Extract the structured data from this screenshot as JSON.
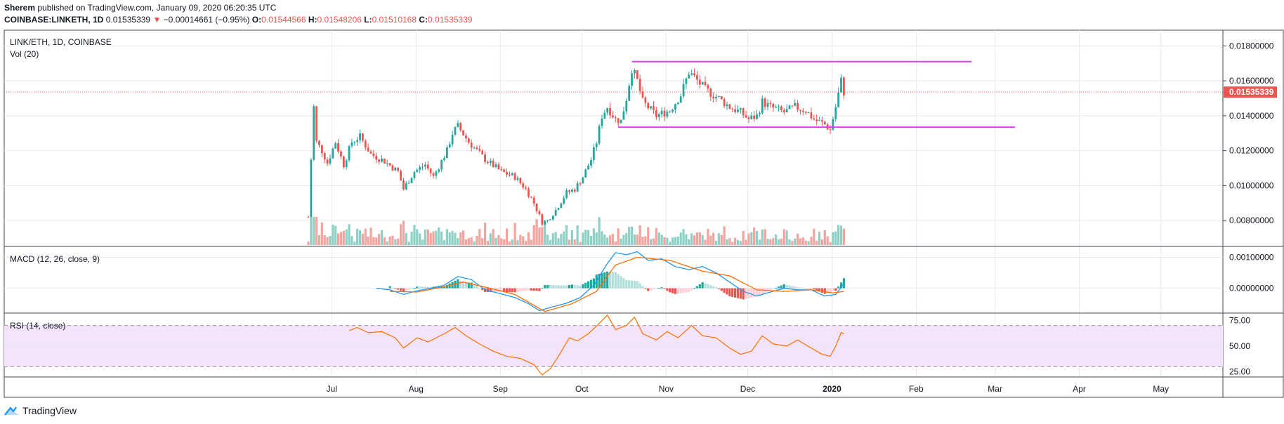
{
  "header": {
    "author": "Sherem",
    "published_text": "published on TradingView.com, January 09, 2020 06:20:35 UTC"
  },
  "ohlc": {
    "symbol": "COINBASE:LINKETH, 1D",
    "last": "0.01535339",
    "arrow": "▼",
    "change": "−0.00014661 (−0.95%)",
    "o_label": "O:",
    "o": "0.01544566",
    "h_label": "H:",
    "h": "0.01548206",
    "l_label": "L:",
    "l": "0.01510168",
    "c_label": "C:",
    "c": "0.01535339"
  },
  "footer": {
    "brand": "TradingView",
    "logo_icon": "tradingview-logo-icon"
  },
  "colors": {
    "up": "#26a69a",
    "down": "#ef5350",
    "up_vol": "#8fd0c6",
    "down_vol": "#f4a39e",
    "level_line": "#e040fb",
    "macd": "#2196f3",
    "signal": "#ff6d00",
    "rsi": "#ff6d00",
    "rsi_band": "#f3e4fb"
  },
  "chart_data": [
    {
      "type": "candlestick",
      "title": "LINK/ETH, 1D, COINBASE",
      "volume_label": "Vol (20)",
      "y_ticks": [
        "0.01800000",
        "0.01600000",
        "0.01400000",
        "0.01200000",
        "0.01000000",
        "0.00800000"
      ],
      "y_tick_values": [
        0.018,
        0.016,
        0.014,
        0.012,
        0.01,
        0.008
      ],
      "ylim": [
        0.0066,
        0.0189
      ],
      "x_ticks": [
        "Jul",
        "Aug",
        "Sep",
        "Oct",
        "Nov",
        "Dec",
        "2020",
        "Feb",
        "Mar",
        "Apr",
        "May"
      ],
      "x_start": "2019-06-26",
      "x_end": "2020-01-09",
      "last_price_label": "0.01535339",
      "last_price": 0.01535339,
      "levels": [
        {
          "price": 0.0171,
          "from": "2019-10-23",
          "to": "2020-02-25"
        },
        {
          "price": 0.01335,
          "from": "2019-10-18",
          "to": "2020-03-12"
        }
      ],
      "close_path": [
        [
          "2019-06-26",
          0.0082
        ],
        [
          "2019-06-27",
          0.0115
        ],
        [
          "2019-06-28",
          0.0145
        ],
        [
          "2019-06-29",
          0.0125
        ],
        [
          "2019-07-01",
          0.012
        ],
        [
          "2019-07-03",
          0.0113
        ],
        [
          "2019-07-06",
          0.0125
        ],
        [
          "2019-07-09",
          0.0112
        ],
        [
          "2019-07-12",
          0.0125
        ],
        [
          "2019-07-15",
          0.0128
        ],
        [
          "2019-07-19",
          0.0118
        ],
        [
          "2019-07-24",
          0.0114
        ],
        [
          "2019-07-29",
          0.0108
        ],
        [
          "2019-07-31",
          0.0098
        ],
        [
          "2019-08-04",
          0.0108
        ],
        [
          "2019-08-08",
          0.0112
        ],
        [
          "2019-08-11",
          0.0105
        ],
        [
          "2019-08-16",
          0.012
        ],
        [
          "2019-08-18",
          0.013
        ],
        [
          "2019-08-20",
          0.0134
        ],
        [
          "2019-08-24",
          0.0125
        ],
        [
          "2019-08-30",
          0.0115
        ],
        [
          "2019-09-05",
          0.0108
        ],
        [
          "2019-09-10",
          0.0105
        ],
        [
          "2019-09-14",
          0.0098
        ],
        [
          "2019-09-17",
          0.009
        ],
        [
          "2019-09-20",
          0.0079
        ],
        [
          "2019-09-22",
          0.008
        ],
        [
          "2019-09-25",
          0.0086
        ],
        [
          "2019-09-29",
          0.0096
        ],
        [
          "2019-10-02",
          0.0098
        ],
        [
          "2019-10-05",
          0.0105
        ],
        [
          "2019-10-08",
          0.0115
        ],
        [
          "2019-10-10",
          0.0125
        ],
        [
          "2019-10-12",
          0.014
        ],
        [
          "2019-10-14",
          0.0145
        ],
        [
          "2019-10-17",
          0.0138
        ],
        [
          "2019-10-19",
          0.0137
        ],
        [
          "2019-10-21",
          0.015
        ],
        [
          "2019-10-23",
          0.0167
        ],
        [
          "2019-10-25",
          0.016
        ],
        [
          "2019-10-27",
          0.0148
        ],
        [
          "2019-11-01",
          0.014
        ],
        [
          "2019-11-06",
          0.0143
        ],
        [
          "2019-11-10",
          0.0152
        ],
        [
          "2019-11-13",
          0.0165
        ],
        [
          "2019-11-15",
          0.0162
        ],
        [
          "2019-11-19",
          0.0155
        ],
        [
          "2019-11-24",
          0.015
        ],
        [
          "2019-11-28",
          0.0145
        ],
        [
          "2019-12-02",
          0.0142
        ],
        [
          "2019-12-05",
          0.0138
        ],
        [
          "2019-12-08",
          0.014
        ],
        [
          "2019-12-10",
          0.0148
        ],
        [
          "2019-12-13",
          0.0145
        ],
        [
          "2019-12-18",
          0.0142
        ],
        [
          "2019-12-22",
          0.0145
        ],
        [
          "2019-12-26",
          0.0143
        ],
        [
          "2019-12-29",
          0.0138
        ],
        [
          "2020-01-02",
          0.0135
        ],
        [
          "2020-01-04",
          0.0132
        ],
        [
          "2020-01-06",
          0.0145
        ],
        [
          "2020-01-08",
          0.016
        ],
        [
          "2020-01-09",
          0.01535339
        ]
      ]
    },
    {
      "type": "line",
      "title": "MACD (12, 26, close, 9)",
      "y_ticks": [
        "0.00100000",
        "0.00000000"
      ],
      "y_tick_values": [
        0.001,
        0.0
      ],
      "ylim": [
        -0.0008,
        0.00135
      ],
      "series": [
        {
          "color": "#2196f3",
          "points": [
            [
              "2019-07-21",
              0.0
            ],
            [
              "2019-07-26",
              -5e-05
            ],
            [
              "2019-07-31",
              -0.0002
            ],
            [
              "2019-08-05",
              -8e-05
            ],
            [
              "2019-08-10",
              0.0
            ],
            [
              "2019-08-15",
              0.0001
            ],
            [
              "2019-08-20",
              0.00038
            ],
            [
              "2019-08-25",
              0.00028
            ],
            [
              "2019-08-30",
              -5e-05
            ],
            [
              "2019-09-05",
              -0.00018
            ],
            [
              "2019-09-10",
              -0.0003
            ],
            [
              "2019-09-15",
              -0.0005
            ],
            [
              "2019-09-19",
              -0.00072
            ],
            [
              "2019-09-23",
              -0.00062
            ],
            [
              "2019-09-29",
              -0.00048
            ],
            [
              "2019-10-04",
              -0.0003
            ],
            [
              "2019-10-09",
              0.0001
            ],
            [
              "2019-10-14",
              0.0008
            ],
            [
              "2019-10-17",
              0.00115
            ],
            [
              "2019-10-21",
              0.00108
            ],
            [
              "2019-10-25",
              0.00118
            ],
            [
              "2019-10-29",
              0.0009
            ],
            [
              "2019-11-03",
              0.00095
            ],
            [
              "2019-11-08",
              0.0007
            ],
            [
              "2019-11-13",
              0.0006
            ],
            [
              "2019-11-18",
              0.0007
            ],
            [
              "2019-11-23",
              0.0005
            ],
            [
              "2019-11-28",
              0.0002
            ],
            [
              "2019-12-03",
              -0.0001
            ],
            [
              "2019-12-08",
              -0.00025
            ],
            [
              "2019-12-13",
              -0.00012
            ],
            [
              "2019-12-18",
              0.0
            ],
            [
              "2019-12-23",
              -5e-05
            ],
            [
              "2019-12-28",
              -5e-05
            ],
            [
              "2020-01-02",
              -0.00025
            ],
            [
              "2020-01-06",
              -0.0002
            ],
            [
              "2020-01-09",
              0.00015
            ]
          ]
        },
        {
          "color": "#ff6d00",
          "points": [
            [
              "2019-07-26",
              -0.0001
            ],
            [
              "2019-08-05",
              -0.00012
            ],
            [
              "2019-08-15",
              5e-05
            ],
            [
              "2019-08-22",
              0.0002
            ],
            [
              "2019-09-01",
              0.0
            ],
            [
              "2019-09-10",
              -0.0002
            ],
            [
              "2019-09-21",
              -0.00075
            ],
            [
              "2019-10-01",
              -0.0005
            ],
            [
              "2019-10-10",
              -0.0001
            ],
            [
              "2019-10-17",
              0.00075
            ],
            [
              "2019-10-25",
              0.001
            ],
            [
              "2019-11-06",
              0.0009
            ],
            [
              "2019-11-18",
              0.00055
            ],
            [
              "2019-11-28",
              0.0004
            ],
            [
              "2019-12-08",
              -5e-05
            ],
            [
              "2019-12-18",
              -0.0001
            ],
            [
              "2019-12-28",
              -5e-05
            ],
            [
              "2020-01-05",
              -0.00015
            ],
            [
              "2020-01-09",
              -0.0001
            ]
          ]
        }
      ]
    },
    {
      "type": "line",
      "title": "RSI (14, close)",
      "y_ticks": [
        "75.00",
        "50.00",
        "25.00"
      ],
      "y_tick_values": [
        75,
        50,
        25
      ],
      "ylim": [
        20,
        82
      ],
      "band": [
        30,
        70
      ],
      "series": [
        {
          "color": "#ff6d00",
          "points": [
            [
              "2019-07-11",
              65
            ],
            [
              "2019-07-14",
              68
            ],
            [
              "2019-07-18",
              63
            ],
            [
              "2019-07-23",
              64
            ],
            [
              "2019-07-28",
              58
            ],
            [
              "2019-07-31",
              48
            ],
            [
              "2019-08-05",
              58
            ],
            [
              "2019-08-09",
              54
            ],
            [
              "2019-08-15",
              62
            ],
            [
              "2019-08-19",
              68
            ],
            [
              "2019-08-23",
              60
            ],
            [
              "2019-08-28",
              52
            ],
            [
              "2019-09-02",
              45
            ],
            [
              "2019-09-07",
              40
            ],
            [
              "2019-09-12",
              38
            ],
            [
              "2019-09-17",
              32
            ],
            [
              "2019-09-20",
              22
            ],
            [
              "2019-09-23",
              28
            ],
            [
              "2019-09-26",
              40
            ],
            [
              "2019-09-30",
              58
            ],
            [
              "2019-10-03",
              55
            ],
            [
              "2019-10-07",
              62
            ],
            [
              "2019-10-11",
              72
            ],
            [
              "2019-10-14",
              80
            ],
            [
              "2019-10-17",
              66
            ],
            [
              "2019-10-21",
              70
            ],
            [
              "2019-10-24",
              78
            ],
            [
              "2019-10-27",
              62
            ],
            [
              "2019-11-01",
              56
            ],
            [
              "2019-11-05",
              64
            ],
            [
              "2019-11-09",
              58
            ],
            [
              "2019-11-14",
              70
            ],
            [
              "2019-11-18",
              60
            ],
            [
              "2019-11-23",
              58
            ],
            [
              "2019-11-28",
              48
            ],
            [
              "2019-12-02",
              42
            ],
            [
              "2019-12-06",
              45
            ],
            [
              "2019-12-10",
              60
            ],
            [
              "2019-12-14",
              52
            ],
            [
              "2019-12-19",
              50
            ],
            [
              "2019-12-23",
              56
            ],
            [
              "2019-12-28",
              48
            ],
            [
              "2020-01-01",
              42
            ],
            [
              "2020-01-04",
              40
            ],
            [
              "2020-01-06",
              50
            ],
            [
              "2020-01-08",
              63
            ],
            [
              "2020-01-09",
              62
            ]
          ]
        }
      ]
    }
  ]
}
